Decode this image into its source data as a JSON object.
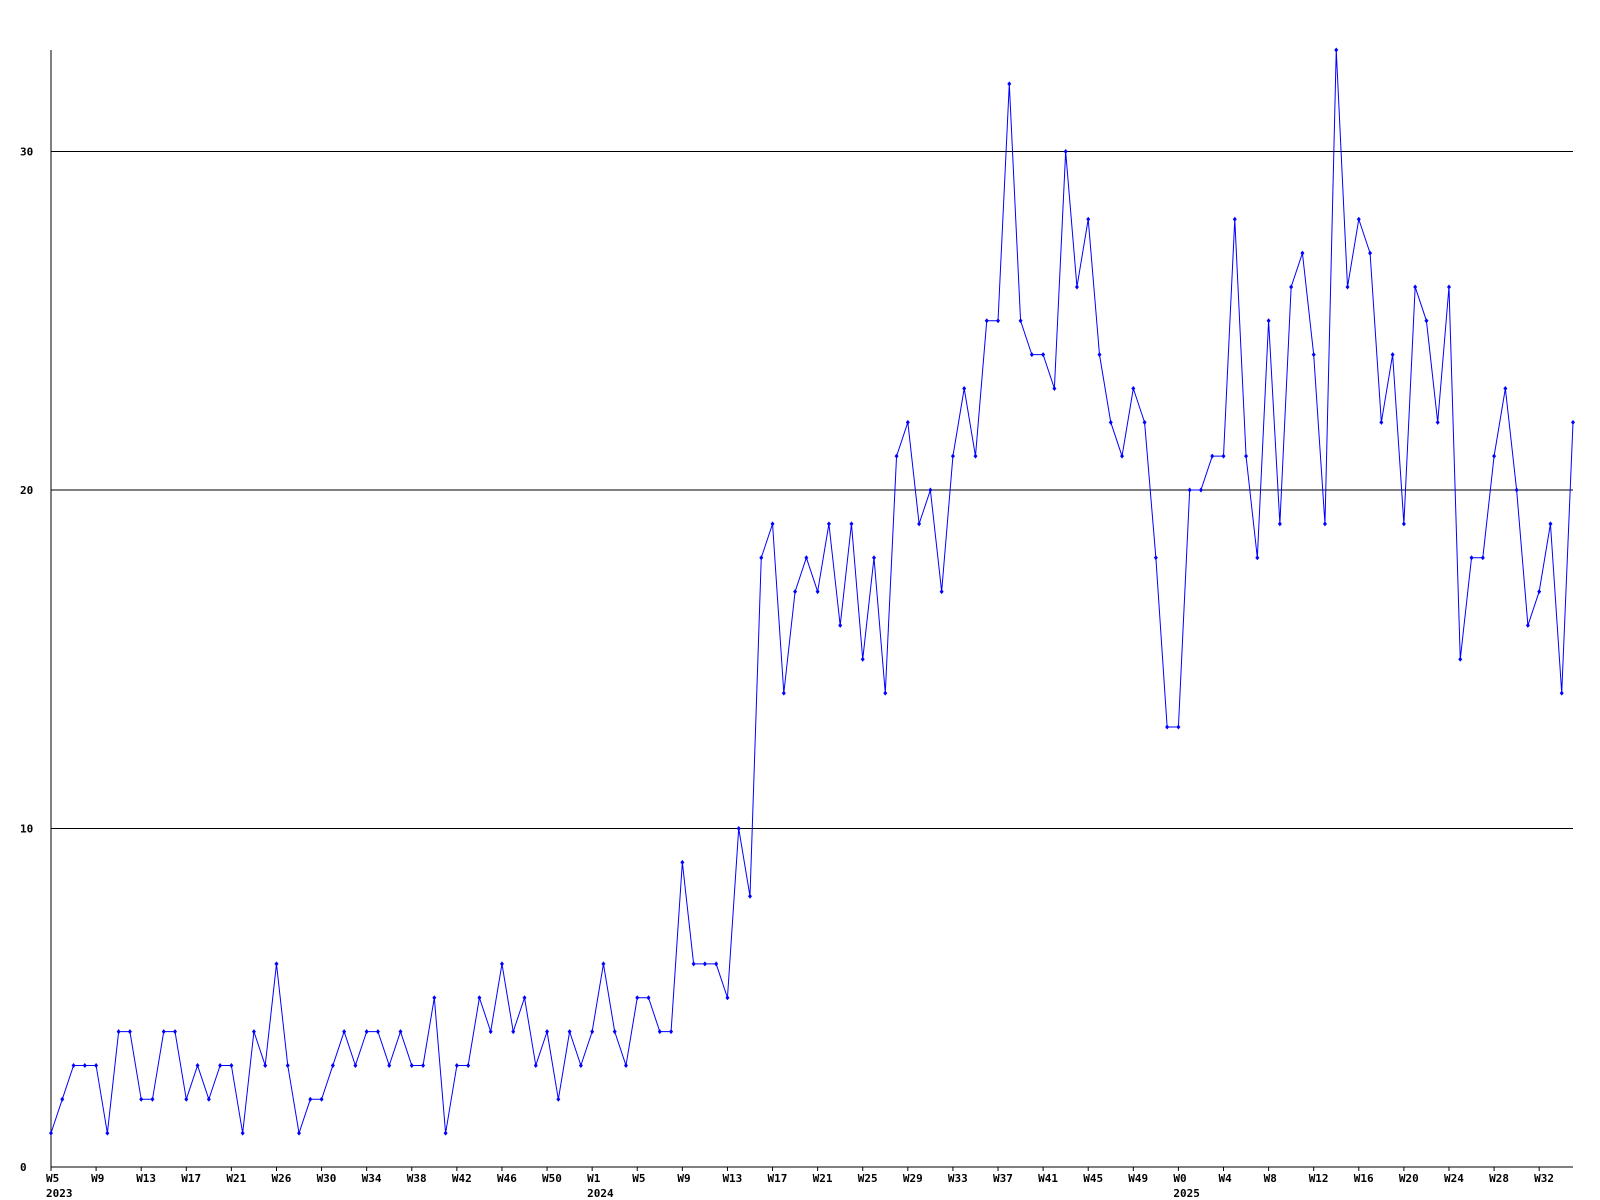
{
  "chart_data": {
    "type": "line",
    "categories": [
      "W5",
      null,
      null,
      null,
      "W9",
      null,
      null,
      null,
      "W13",
      null,
      null,
      null,
      "W17",
      null,
      null,
      null,
      "W21",
      null,
      null,
      null,
      "W26",
      null,
      null,
      null,
      "W30",
      null,
      null,
      null,
      "W34",
      null,
      null,
      null,
      "W38",
      null,
      null,
      null,
      "W42",
      null,
      null,
      null,
      "W46",
      null,
      null,
      null,
      "W50",
      null,
      null,
      null,
      "W1",
      null,
      null,
      null,
      "W5",
      null,
      null,
      null,
      "W9",
      null,
      null,
      null,
      "W13",
      null,
      null,
      null,
      "W17",
      null,
      null,
      null,
      "W21",
      null,
      null,
      null,
      "W25",
      null,
      null,
      null,
      "W29",
      null,
      null,
      null,
      "W33",
      null,
      null,
      null,
      "W37",
      null,
      null,
      null,
      "W41",
      null,
      null,
      null,
      "W45",
      null,
      null,
      null,
      "W49",
      null,
      null,
      null,
      "W0",
      null,
      null,
      null,
      "W4",
      null,
      null,
      null,
      "W8",
      null,
      null,
      null,
      "W12",
      null,
      null,
      null,
      "W16",
      null,
      null,
      null,
      "W20",
      null,
      null,
      null,
      "W24",
      null,
      null,
      null,
      "W28",
      null,
      null,
      null,
      "W32",
      null,
      null,
      null
    ],
    "category_years": [
      "2023",
      null,
      null,
      null,
      null,
      null,
      null,
      null,
      null,
      null,
      null,
      null,
      null,
      null,
      null,
      null,
      null,
      null,
      null,
      null,
      null,
      null,
      null,
      null,
      null,
      null,
      null,
      null,
      null,
      null,
      null,
      null,
      null,
      null,
      null,
      null,
      null,
      null,
      null,
      null,
      null,
      null,
      null,
      null,
      null,
      null,
      null,
      null,
      "2024",
      null,
      null,
      null,
      null,
      null,
      null,
      null,
      null,
      null,
      null,
      null,
      null,
      null,
      null,
      null,
      null,
      null,
      null,
      null,
      null,
      null,
      null,
      null,
      null,
      null,
      null,
      null,
      null,
      null,
      null,
      null,
      null,
      null,
      null,
      null,
      null,
      null,
      null,
      null,
      null,
      null,
      null,
      null,
      null,
      null,
      null,
      null,
      null,
      null,
      null,
      null,
      "2025",
      null,
      null,
      null,
      null,
      null,
      null,
      null,
      null,
      null,
      null,
      null,
      null,
      null,
      null,
      null,
      null,
      null,
      null,
      null,
      null,
      null,
      null,
      null,
      null,
      null,
      null,
      null,
      null,
      null,
      null,
      null,
      null,
      null,
      null,
      null
    ],
    "series": [
      {
        "color": "#0000ff",
        "values": [
          1,
          2,
          3,
          3,
          3,
          1,
          4,
          4,
          2,
          2,
          4,
          4,
          2,
          3,
          2,
          3,
          3,
          1,
          4,
          3,
          6,
          3,
          1,
          2,
          2,
          3,
          4,
          3,
          4,
          4,
          3,
          4,
          3,
          3,
          5,
          1,
          3,
          3,
          5,
          4,
          6,
          4,
          5,
          3,
          4,
          2,
          4,
          3,
          4,
          6,
          4,
          3,
          5,
          5,
          4,
          4,
          9,
          6,
          6,
          6,
          5,
          10,
          8,
          18,
          19,
          14,
          17,
          18,
          17,
          19,
          16,
          19,
          15,
          18,
          14,
          21,
          22,
          19,
          20,
          17,
          21,
          23,
          21,
          25,
          25,
          32,
          25,
          24,
          24,
          23,
          30,
          26,
          28,
          24,
          22,
          21,
          23,
          22,
          18,
          13,
          13,
          20,
          20,
          21,
          21,
          28,
          21,
          18,
          25,
          19,
          26,
          27,
          24,
          19,
          33,
          26,
          28,
          27,
          22,
          24,
          19,
          26,
          25,
          22,
          26,
          15,
          18,
          18,
          21,
          23,
          20,
          16,
          17,
          19,
          14,
          22
        ]
      }
    ],
    "ylim": [
      0,
      33
    ],
    "yticks": [
      0,
      10,
      20,
      30
    ],
    "grid": true
  }
}
